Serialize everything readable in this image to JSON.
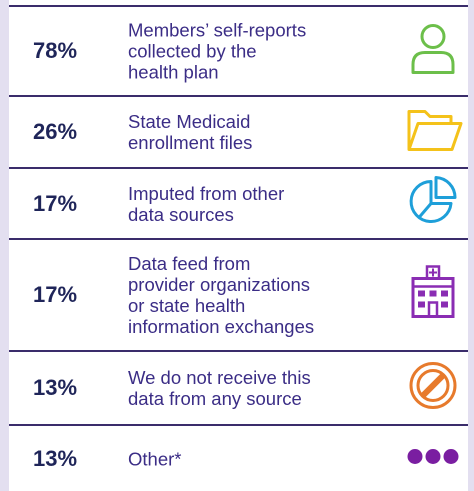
{
  "rows": [
    {
      "percent": "78%",
      "lines": [
        "Members’ self-reports",
        "collected by the",
        "health plan"
      ]
    },
    {
      "percent": "26%",
      "lines": [
        "State Medicaid",
        "enrollment files"
      ]
    },
    {
      "percent": "17%",
      "lines": [
        "Imputed from other",
        "data sources"
      ]
    },
    {
      "percent": "17%",
      "lines": [
        "Data feed from",
        "provider organizations",
        "or state health",
        "information exchanges"
      ]
    },
    {
      "percent": "13%",
      "lines": [
        "We do not receive this",
        "data from any source"
      ]
    },
    {
      "percent": "13%",
      "lines": [
        "Other*"
      ]
    }
  ]
}
